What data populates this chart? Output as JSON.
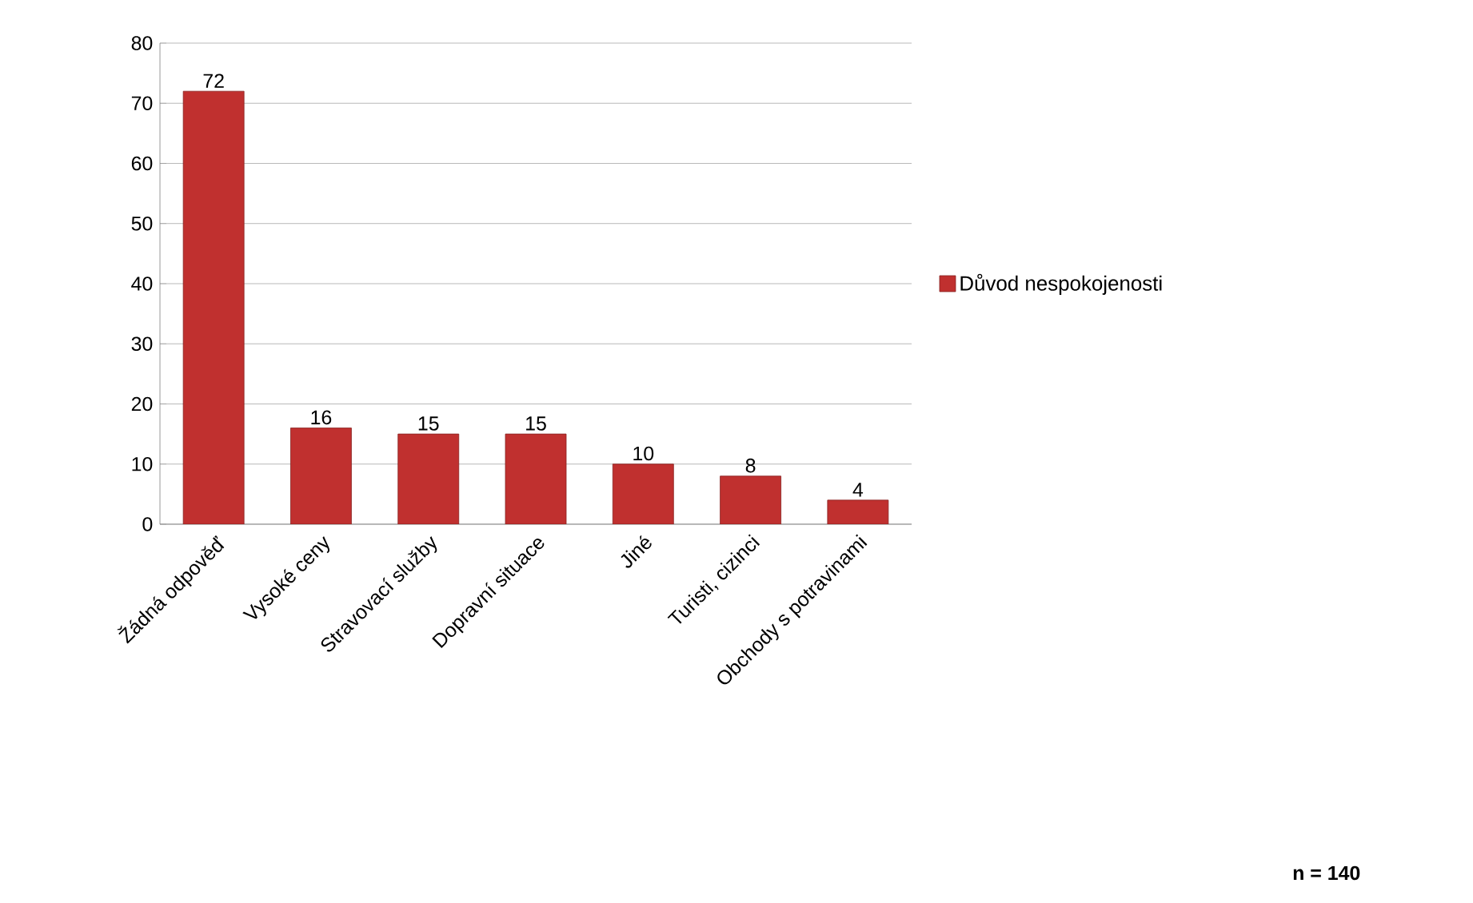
{
  "chart_data": {
    "type": "bar",
    "categories": [
      "Žádná odpověď",
      "Vysoké ceny",
      "Stravovací služby",
      "Dopravní situace",
      "Jiné",
      "Turisti, cizinci",
      "Obchody s potravinami"
    ],
    "series": [
      {
        "name": "Důvod nespokojenosti",
        "color": "#c0302f",
        "values": [
          72,
          16,
          15,
          15,
          10,
          8,
          4
        ]
      }
    ],
    "ylim": [
      0,
      80
    ],
    "yticks": [
      0,
      10,
      20,
      30,
      40,
      50,
      60,
      70,
      80
    ],
    "grid": "y",
    "legend": "right",
    "data_labels": true,
    "annotations": [
      "n = 140"
    ]
  }
}
